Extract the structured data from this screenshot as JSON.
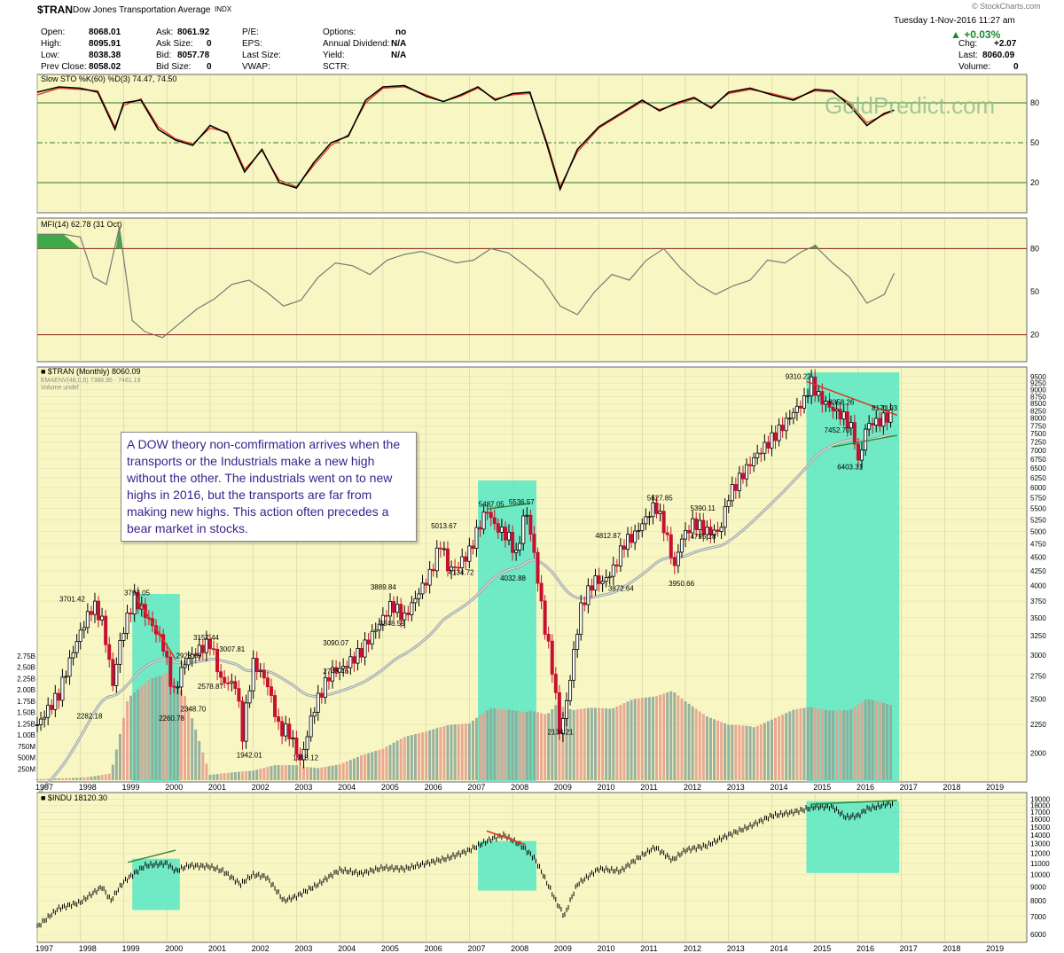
{
  "header": {
    "symbol": "$TRAN",
    "name": "Dow Jones Transportation Average",
    "exchange": "INDX",
    "source": "© StockCharts.com",
    "date": "Tuesday  1-Nov-2016  11:27 am",
    "change_pct": "+0.03%",
    "fields": {
      "open_label": "Open:",
      "open": "8068.01",
      "high_label": "High:",
      "high": "8095.91",
      "low_label": "Low:",
      "low": "8038.38",
      "prev_label": "Prev Close:",
      "prev": "8058.02",
      "ask_label": "Ask:",
      "ask": "8061.92",
      "asksize_label": "Ask Size:",
      "asksize": "0",
      "bid_label": "Bid:",
      "bid": "8057.78",
      "bidsize_label": "Bid Size:",
      "bidsize": "0",
      "pe_label": "P/E:",
      "eps_label": "EPS:",
      "lastsize_label": "Last Size:",
      "vwap_label": "VWAP:",
      "options_label": "Options:",
      "options": "no",
      "div_label": "Annual Dividend:",
      "div": "N/A",
      "yield_label": "Yield:",
      "yield": "N/A",
      "sctr_label": "SCTR:",
      "chg_label": "Chg:",
      "chg": "+2.07",
      "last_label": "Last:",
      "last": "8060.09",
      "volume_label": "Volume:",
      "volume": "0"
    }
  },
  "note": "A DOW theory non-comfirmation arrives when the transports or the Industrials make a new high without the other. The industrials went on to new highs in 2016, but the transports are far from making new highs. This action often precedes a bear market in stocks.",
  "colors": {
    "panel_bg": "#f8f7c4",
    "highlight": "#5fe8c4",
    "stoch_k": "#000000",
    "stoch_d": "#e23020",
    "mfi": "#777777",
    "ema": "#9aa2a2",
    "up_candle": "#000000",
    "down_candle": "#c8102e",
    "trend_red": "#e23020",
    "trend_green": "#2e8b2e"
  },
  "chart_data": [
    {
      "type": "line",
      "title": "Slow STO %K(60) %D(3) 74.47, 74.50",
      "yticks": [
        20,
        50,
        80
      ],
      "x": [
        1997.0,
        1997.5,
        1998.0,
        1998.4,
        1998.8,
        1999.0,
        1999.4,
        1999.8,
        2000.2,
        2000.6,
        2001.0,
        2001.4,
        2001.8,
        2002.2,
        2002.6,
        2003.0,
        2003.4,
        2003.8,
        2004.2,
        2004.6,
        2005.0,
        2005.5,
        2006.0,
        2006.4,
        2006.8,
        2007.2,
        2007.6,
        2008.0,
        2008.4,
        2008.8,
        2009.1,
        2009.5,
        2010.0,
        2010.5,
        2011.0,
        2011.4,
        2011.8,
        2012.2,
        2012.6,
        2013.0,
        2013.5,
        2014.0,
        2014.5,
        2015.0,
        2015.4,
        2015.8,
        2016.2,
        2016.6,
        2016.83
      ],
      "series": [
        {
          "name": "%K(60)",
          "values": [
            88,
            92,
            91,
            88,
            60,
            80,
            82,
            60,
            52,
            48,
            63,
            57,
            28,
            45,
            20,
            16,
            35,
            50,
            55,
            82,
            92,
            93,
            85,
            81,
            86,
            92,
            82,
            87,
            88,
            48,
            15,
            45,
            62,
            72,
            82,
            74,
            80,
            84,
            76,
            88,
            91,
            86,
            82,
            90,
            89,
            78,
            63,
            72,
            74.47
          ]
        },
        {
          "name": "%D(3)",
          "values": [
            86,
            91,
            90,
            89,
            62,
            78,
            83,
            62,
            53,
            49,
            61,
            58,
            30,
            44,
            22,
            17,
            33,
            48,
            56,
            80,
            91,
            92,
            86,
            81,
            85,
            91,
            83,
            86,
            87,
            50,
            17,
            43,
            61,
            71,
            81,
            75,
            79,
            83,
            77,
            87,
            90,
            87,
            83,
            89,
            88,
            80,
            65,
            71,
            74.5
          ]
        }
      ]
    },
    {
      "type": "line",
      "title": "MFI(14) 62.78 (31 Oct)",
      "yticks": [
        20,
        50,
        80
      ],
      "x": [
        1997.0,
        1997.6,
        1998.0,
        1998.3,
        1998.6,
        1998.9,
        1999.2,
        1999.5,
        1999.9,
        2000.3,
        2000.7,
        2001.1,
        2001.5,
        2001.9,
        2002.3,
        2002.7,
        2003.1,
        2003.5,
        2003.9,
        2004.3,
        2004.7,
        2005.1,
        2005.5,
        2005.9,
        2006.3,
        2006.7,
        2007.1,
        2007.5,
        2007.9,
        2008.3,
        2008.7,
        2009.1,
        2009.5,
        2009.9,
        2010.3,
        2010.7,
        2011.1,
        2011.5,
        2011.9,
        2012.3,
        2012.7,
        2013.1,
        2013.5,
        2013.9,
        2014.3,
        2014.7,
        2015.0,
        2015.4,
        2015.8,
        2016.2,
        2016.6,
        2016.83
      ],
      "values": [
        90,
        90,
        88,
        60,
        55,
        95,
        30,
        22,
        18,
        28,
        38,
        45,
        55,
        58,
        50,
        40,
        44,
        60,
        70,
        68,
        62,
        72,
        76,
        78,
        74,
        70,
        72,
        80,
        77,
        68,
        58,
        40,
        34,
        50,
        62,
        58,
        72,
        80,
        66,
        55,
        48,
        54,
        58,
        72,
        70,
        78,
        82,
        70,
        60,
        42,
        48,
        62.78
      ]
    },
    {
      "type": "candlestick",
      "title": "$TRAN (Monthly) 8060.09",
      "overlay": "EMAENV(48,0,5) 7386.95 - 7461.19",
      "volume_label": "Volume undef",
      "scale": "log",
      "yticks": [
        2000,
        2250,
        2500,
        2750,
        3000,
        3250,
        3500,
        3750,
        4000,
        4250,
        4500,
        4750,
        5000,
        5250,
        5500,
        5750,
        6000,
        6250,
        6500,
        6750,
        7000,
        7250,
        7500,
        7750,
        8000,
        8250,
        8500,
        8750,
        9000,
        9250,
        9500
      ],
      "volume_ticks": [
        "250M",
        "500M",
        "750M",
        "1.00B",
        "1.25B",
        "1.50B",
        "1.75B",
        "2.00B",
        "2.25B",
        "2.50B",
        "2.75B"
      ],
      "x_years": [
        "1997",
        "1998",
        "1999",
        "2000",
        "2001",
        "2002",
        "2003",
        "2004",
        "2005",
        "2006",
        "2007",
        "2008",
        "2009",
        "2010",
        "2011",
        "2012",
        "2013",
        "2014",
        "2015",
        "2016",
        "2017",
        "2018",
        "2019"
      ],
      "path_x": [
        1997.0,
        1997.5,
        1998.0,
        1998.3,
        1998.5,
        1998.75,
        1998.95,
        1999.25,
        1999.6,
        1999.9,
        2000.15,
        2000.4,
        2000.7,
        2001.0,
        2001.25,
        2001.6,
        2001.75,
        2002.0,
        2002.3,
        2002.6,
        2002.8,
        2003.1,
        2003.4,
        2003.8,
        2004.1,
        2004.5,
        2004.9,
        2005.2,
        2005.5,
        2005.8,
        2006.1,
        2006.35,
        2006.5,
        2006.7,
        2007.0,
        2007.4,
        2007.6,
        2007.9,
        2008.1,
        2008.3,
        2008.45,
        2008.7,
        2008.9,
        2009.1,
        2009.3,
        2009.6,
        2009.9,
        2010.1,
        2010.35,
        2010.6,
        2010.8,
        2011.1,
        2011.3,
        2011.5,
        2011.75,
        2011.9,
        2012.2,
        2012.5,
        2012.8,
        2013.0,
        2013.3,
        2013.6,
        2013.9,
        2014.2,
        2014.5,
        2014.75,
        2014.9,
        2015.1,
        2015.4,
        2015.7,
        2015.9,
        2016.0,
        2016.2,
        2016.5,
        2016.7,
        2016.83
      ],
      "path_y": [
        2240,
        2550,
        3300,
        3700,
        3450,
        2650,
        3250,
        3797,
        3450,
        3150,
        2540,
        2900,
        3050,
        3157,
        2700,
        2650,
        2150,
        2900,
        2700,
        2200,
        2200,
        1918,
        2400,
        2800,
        2850,
        3050,
        3400,
        3700,
        3500,
        3850,
        4200,
        4800,
        4300,
        4300,
        4600,
        5490,
        5100,
        4900,
        4500,
        5536,
        4800,
        3500,
        2900,
        2134,
        2600,
        3700,
        4100,
        4050,
        4300,
        4800,
        4900,
        5300,
        5600,
        5100,
        4300,
        4850,
        5200,
        5000,
        5000,
        5800,
        6300,
        6800,
        7200,
        7650,
        8200,
        8600,
        9310,
        8700,
        8300,
        8000,
        7500,
        6600,
        7800,
        7900,
        8100,
        8060
      ],
      "volume_path_x": [
        1997.0,
        1997.6,
        1998.2,
        1998.7,
        1999.1,
        1999.6,
        2000.0,
        2000.4,
        2001.0,
        2001.5,
        2002.0,
        2002.5,
        2003.0,
        2003.5,
        2004.0,
        2004.5,
        2005.0,
        2005.5,
        2006.0,
        2006.5,
        2007.0,
        2007.5,
        2008.0,
        2008.4,
        2008.8,
        2009.0,
        2009.4,
        2009.8,
        2010.3,
        2010.8,
        2011.3,
        2011.7,
        2012.0,
        2012.5,
        2013.0,
        2013.5,
        2014.0,
        2014.5,
        2014.9,
        2015.3,
        2015.8,
        2016.2,
        2016.83
      ],
      "volume_path_y": [
        0.02,
        0.05,
        0.08,
        0.15,
        1.7,
        1.95,
        2.0,
        1.6,
        0.1,
        0.15,
        0.2,
        0.35,
        0.4,
        0.3,
        0.35,
        0.5,
        0.6,
        0.8,
        0.9,
        1.05,
        1.15,
        1.6,
        1.75,
        1.9,
        1.6,
        1.75,
        1.5,
        1.45,
        1.35,
        1.5,
        1.55,
        1.7,
        1.55,
        1.35,
        1.3,
        1.45,
        1.5,
        1.55,
        1.5,
        1.35,
        1.3,
        1.5,
        1.4
      ],
      "labels": [
        {
          "t": "3701.42",
          "x": 1997.8,
          "y": 3701
        },
        {
          "t": "3797.05",
          "x": 1999.3,
          "y": 3797
        },
        {
          "t": "2282.18",
          "x": 1998.2,
          "y": 2282
        },
        {
          "t": "2928.69",
          "x": 2000.5,
          "y": 2929
        },
        {
          "t": "2260.78",
          "x": 2000.1,
          "y": 2261
        },
        {
          "t": "3157.44",
          "x": 2000.9,
          "y": 3157
        },
        {
          "t": "3007.81",
          "x": 2001.5,
          "y": 3008
        },
        {
          "t": "2578.87",
          "x": 2001.0,
          "y": 2579
        },
        {
          "t": "2348.70",
          "x": 2000.6,
          "y": 2349
        },
        {
          "t": "1942.01",
          "x": 2001.9,
          "y": 1942
        },
        {
          "t": "1918.12",
          "x": 2003.2,
          "y": 1918
        },
        {
          "t": "2743.46",
          "x": 2003.9,
          "y": 2743
        },
        {
          "t": "3090.07",
          "x": 2003.9,
          "y": 3090
        },
        {
          "t": "3889.84",
          "x": 2005.0,
          "y": 3890
        },
        {
          "t": "3348.59",
          "x": 2005.2,
          "y": 3349
        },
        {
          "t": "5013.67",
          "x": 2006.4,
          "y": 5014
        },
        {
          "t": "4134.72",
          "x": 2006.8,
          "y": 4135
        },
        {
          "t": "5487.05",
          "x": 2007.5,
          "y": 5487
        },
        {
          "t": "5536.57",
          "x": 2008.2,
          "y": 5537
        },
        {
          "t": "4032.88",
          "x": 2008.0,
          "y": 4033
        },
        {
          "t": "2134.21",
          "x": 2009.1,
          "y": 2134
        },
        {
          "t": "4812.87",
          "x": 2010.2,
          "y": 4813
        },
        {
          "t": "3872.64",
          "x": 2010.5,
          "y": 3873
        },
        {
          "t": "5627.85",
          "x": 2011.4,
          "y": 5628
        },
        {
          "t": "3950.66",
          "x": 2011.9,
          "y": 3951
        },
        {
          "t": "5390.11",
          "x": 2012.4,
          "y": 5390
        },
        {
          "t": "4795.28",
          "x": 2012.4,
          "y": 4795
        },
        {
          "t": "9310.22",
          "x": 2014.6,
          "y": 9310
        },
        {
          "t": "8358.26",
          "x": 2015.6,
          "y": 8358
        },
        {
          "t": "8171.93",
          "x": 2016.6,
          "y": 8172
        },
        {
          "t": "7452.70",
          "x": 2015.5,
          "y": 7453
        },
        {
          "t": "6403.31",
          "x": 2015.8,
          "y": 6403
        }
      ],
      "highlights": [
        [
          1999.2,
          2000.3
        ],
        [
          2007.2,
          2008.55
        ],
        [
          2014.8,
          2016.95
        ]
      ]
    },
    {
      "type": "line",
      "title": "$INDU 18120.30",
      "yticks": [
        6000,
        7000,
        8000,
        9000,
        10000,
        11000,
        12000,
        13000,
        14000,
        15000,
        16000,
        17000,
        18000,
        19000
      ],
      "x": [
        1997.0,
        1997.5,
        1998.0,
        1998.5,
        1998.7,
        1999.0,
        1999.5,
        2000.0,
        2000.2,
        2000.5,
        2001.0,
        2001.3,
        2001.7,
        2002.0,
        2002.3,
        2002.7,
        2003.0,
        2003.5,
        2004.0,
        2004.5,
        2005.0,
        2005.5,
        2006.0,
        2006.5,
        2007.0,
        2007.5,
        2007.8,
        2008.2,
        2008.5,
        2008.8,
        2009.0,
        2009.2,
        2009.5,
        2010.0,
        2010.5,
        2011.0,
        2011.3,
        2011.7,
        2012.0,
        2012.5,
        2013.0,
        2013.5,
        2014.0,
        2014.5,
        2015.0,
        2015.4,
        2015.7,
        2016.0,
        2016.2,
        2016.5,
        2016.7,
        2016.83
      ],
      "values": [
        6400,
        7500,
        7900,
        9000,
        8000,
        9400,
        10800,
        11000,
        10300,
        10800,
        10700,
        10300,
        9200,
        10000,
        9800,
        8000,
        8300,
        9200,
        10400,
        10100,
        10600,
        10500,
        11000,
        11500,
        12300,
        13500,
        14000,
        12800,
        11500,
        9300,
        8000,
        7000,
        9200,
        10500,
        10300,
        11800,
        12600,
        11300,
        12300,
        12800,
        14000,
        15100,
        16500,
        17000,
        17800,
        17800,
        16300,
        16500,
        17500,
        17900,
        18300,
        18120
      ],
      "highlights": [
        [
          1999.0,
          2000.3
        ],
        [
          2007.2,
          2008.55
        ],
        [
          2014.8,
          2016.95
        ]
      ]
    }
  ]
}
